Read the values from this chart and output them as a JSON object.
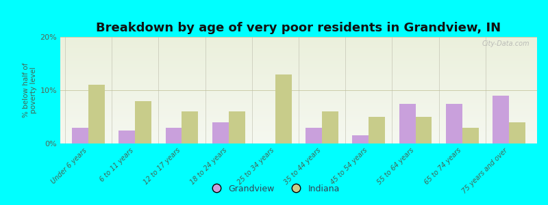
{
  "title": "Breakdown by age of very poor residents in Grandview, IN",
  "ylabel": "% below half of\npoverty level",
  "categories": [
    "Under 6 years",
    "6 to 11 years",
    "12 to 17 years",
    "18 to 24 years",
    "25 to 34 years",
    "35 to 44 years",
    "45 to 54 years",
    "55 to 64 years",
    "65 to 74 years",
    "75 years and over"
  ],
  "grandview_values": [
    3.0,
    2.5,
    3.0,
    4.0,
    0.0,
    3.0,
    1.5,
    7.5,
    7.5,
    9.0
  ],
  "indiana_values": [
    11.0,
    8.0,
    6.0,
    6.0,
    13.0,
    6.0,
    5.0,
    5.0,
    3.0,
    4.0
  ],
  "grandview_color": "#c9a0dc",
  "indiana_color": "#c8cc8a",
  "background_color": "#00ffff",
  "ylim": [
    0,
    20
  ],
  "yticks": [
    0,
    10,
    20
  ],
  "ytick_labels": [
    "0%",
    "10%",
    "20%"
  ],
  "bar_width": 0.35,
  "title_fontsize": 13,
  "legend_label_grandview": "Grandview",
  "legend_label_indiana": "Indiana",
  "watermark": "City-Data.com"
}
